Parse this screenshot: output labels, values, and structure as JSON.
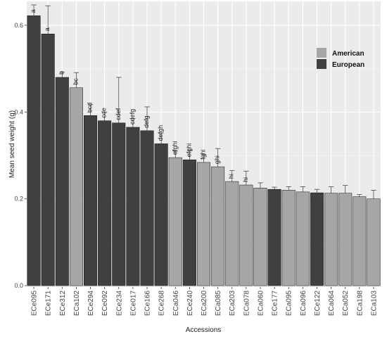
{
  "chart_data": {
    "type": "bar",
    "xlabel": "Accessions",
    "ylabel": "Mean seed weight (g)",
    "ylim": [
      -0.003,
      0.655
    ],
    "yticks": [
      0.0,
      0.2,
      0.4,
      0.6
    ],
    "ytick_labels": [
      "0.0",
      "0.2",
      "0.4",
      "0.6"
    ],
    "grid": true,
    "legend_position": "top-right",
    "legend": [
      {
        "label": "American",
        "color": "#a6a6a6"
      },
      {
        "label": "European",
        "color": "#404040"
      }
    ],
    "categories": [
      "ECe095",
      "ECe171",
      "ECe312",
      "ECa102",
      "ECe294",
      "ECe092",
      "ECe234",
      "ECe017",
      "ECe166",
      "ECe268",
      "ECa046",
      "ECe240",
      "ECa200",
      "ECa085",
      "ECa203",
      "ECa078",
      "ECa060",
      "ECe177",
      "ECa095",
      "ECa096",
      "ECe122",
      "ECa064",
      "ECa052",
      "ECa198",
      "ECa103"
    ],
    "values": [
      0.622,
      0.58,
      0.48,
      0.456,
      0.392,
      0.38,
      0.375,
      0.365,
      0.357,
      0.327,
      0.295,
      0.29,
      0.284,
      0.274,
      0.24,
      0.232,
      0.225,
      0.222,
      0.22,
      0.216,
      0.214,
      0.213,
      0.213,
      0.205,
      0.2
    ],
    "errors": [
      0.025,
      0.065,
      0.012,
      0.035,
      0.025,
      0.02,
      0.105,
      0.02,
      0.055,
      0.025,
      0.015,
      0.022,
      0.018,
      0.042,
      0.025,
      0.032,
      0.012,
      0.005,
      0.008,
      0.012,
      0.008,
      0.015,
      0.018,
      0.005,
      0.02
    ],
    "groups": [
      "European",
      "European",
      "European",
      "American",
      "European",
      "European",
      "European",
      "European",
      "European",
      "European",
      "American",
      "European",
      "American",
      "American",
      "American",
      "American",
      "American",
      "European",
      "American",
      "American",
      "European",
      "American",
      "American",
      "American",
      "American"
    ],
    "labels": [
      "a",
      "a",
      "b",
      "bc",
      "bcd",
      "cde",
      "cdef",
      "cdefg",
      "defg",
      "defgh",
      "efghi",
      "efghi",
      "fghi",
      "ghi",
      "hi",
      "hi",
      "",
      "",
      "",
      "",
      "",
      "",
      "",
      "",
      ""
    ]
  }
}
